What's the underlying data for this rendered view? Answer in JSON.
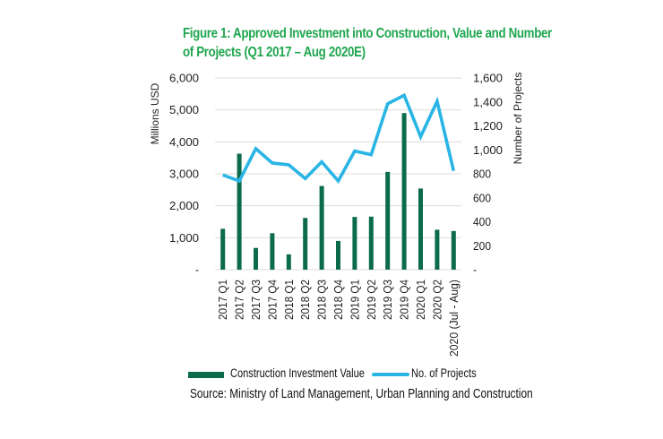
{
  "colors": {
    "title": "#1fa64f",
    "bar": "#0b6b4b",
    "line": "#29b5e5",
    "grid": "#dcdcdc",
    "text": "#222222"
  },
  "chart_data": {
    "type": "bar+line",
    "title": "Figure 1: Approved Investment into Construction, Value and Number of Projects (Q1 2017 –  Aug 2020E)",
    "title_lines": [
      "Figure 1: Approved Investment into Construction, Value and Number",
      "of Projects (Q1 2017 –  Aug 2020E)"
    ],
    "categories": [
      "2017 Q1",
      "2017 Q2",
      "2017 Q3",
      "2017 Q4",
      "2018 Q1",
      "2018 Q2",
      "2018 Q3",
      "2018 Q4",
      "2019 Q1",
      "2019 Q2",
      "2019 Q3",
      "2019 Q4",
      "2020 Q1",
      "2020 Q2",
      "2020 (Jul - Aug)"
    ],
    "series": [
      {
        "name": "Construction Investment Value",
        "type": "bar",
        "axis": "left",
        "values": [
          1280,
          3630,
          680,
          1140,
          480,
          1620,
          2620,
          900,
          1650,
          1660,
          3060,
          4900,
          2540,
          1250,
          1210
        ]
      },
      {
        "name": "No. of Projects",
        "type": "line",
        "axis": "right",
        "values": [
          790,
          740,
          1010,
          890,
          875,
          760,
          900,
          740,
          990,
          960,
          1385,
          1455,
          1110,
          1405,
          825
        ]
      }
    ],
    "ylabel": "Millions USD",
    "y2label": "Number of Projects",
    "xlabel": "",
    "ylim": [
      0,
      6000
    ],
    "y2lim": [
      0,
      1600
    ],
    "yticks": [
      0,
      1000,
      2000,
      3000,
      4000,
      5000,
      6000
    ],
    "ytick_labels": [
      "-",
      "1,000",
      "2,000",
      "3,000",
      "4,000",
      "5,000",
      "6,000"
    ],
    "y2ticks": [
      0,
      200,
      400,
      600,
      800,
      1000,
      1200,
      1400,
      1600
    ],
    "y2tick_labels": [
      "-",
      "200",
      "400",
      "600",
      "800",
      "1,000",
      "1,200",
      "1,400",
      "1,600"
    ],
    "grid": true,
    "legend": {
      "placement": "bottom",
      "entries": [
        "Construction Investment Value",
        "No. of Projects"
      ]
    },
    "source": "Source: Ministry of Land Management, Urban Planning and Construction"
  }
}
